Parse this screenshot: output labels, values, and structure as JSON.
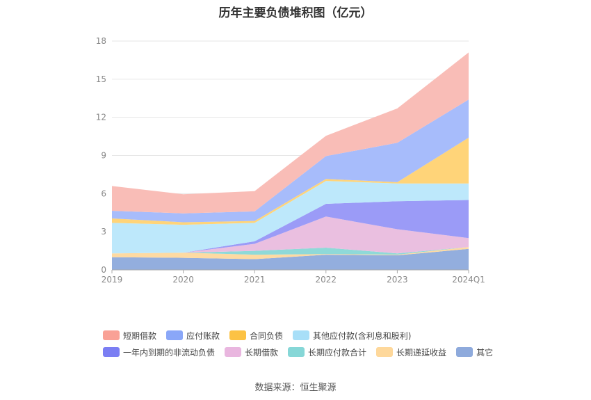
{
  "chart_data": {
    "type": "area",
    "title": "历年主要负债堆积图（亿元）",
    "categories": [
      "2019",
      "2020",
      "2021",
      "2022",
      "2023",
      "2024Q1"
    ],
    "ylim": [
      0,
      18
    ],
    "yticks": [
      0,
      3,
      6,
      9,
      12,
      15,
      18
    ],
    "stacked": true,
    "grid": true,
    "legend_position": "bottom",
    "series": [
      {
        "name": "其它",
        "color": "#93aede",
        "values": [
          1.0,
          0.95,
          0.85,
          1.2,
          1.15,
          1.65
        ]
      },
      {
        "name": "长期递延收益",
        "color": "#fedaa2",
        "values": [
          0.3,
          0.4,
          0.35,
          0.05,
          0.05,
          0.15
        ]
      },
      {
        "name": "长期应付款合计",
        "color": "#8fd9d8",
        "values": [
          0.0,
          0.0,
          0.3,
          0.5,
          0.1,
          0.0
        ]
      },
      {
        "name": "长期借款",
        "color": "#eabfe0",
        "values": [
          0.0,
          0.0,
          0.55,
          2.45,
          1.9,
          0.7
        ]
      },
      {
        "name": "一年内到期的非流动负债",
        "color": "#9b9bf7",
        "values": [
          0.0,
          0.0,
          0.2,
          1.0,
          2.2,
          3.0
        ]
      },
      {
        "name": "其他应付款(含利息和股利)",
        "color": "#bde8fb",
        "values": [
          2.4,
          2.2,
          1.45,
          1.8,
          1.4,
          1.3
        ]
      },
      {
        "name": "合同负债",
        "color": "#ffd479",
        "values": [
          0.35,
          0.2,
          0.15,
          0.15,
          0.1,
          3.6
        ]
      },
      {
        "name": "应付账款",
        "color": "#a7bcfb",
        "values": [
          0.6,
          0.7,
          0.75,
          1.8,
          3.1,
          3.0
        ]
      },
      {
        "name": "短期借款",
        "color": "#f9bdb7",
        "values": [
          1.95,
          1.5,
          1.6,
          1.6,
          2.7,
          3.7
        ]
      }
    ]
  },
  "legend": {
    "row1": [
      {
        "label": "短期借款",
        "color": "#f9a196"
      },
      {
        "label": "应付账款",
        "color": "#8aa7f8"
      },
      {
        "label": "合同负债",
        "color": "#fcc244"
      },
      {
        "label": "其他应付款(含利息和股利)",
        "color": "#a8dff8"
      }
    ],
    "row2": [
      {
        "label": "一年内到期的非流动负债",
        "color": "#7b7ef3"
      },
      {
        "label": "长期借款",
        "color": "#e9b6df"
      },
      {
        "label": "长期应付款合计",
        "color": "#86d7d7"
      },
      {
        "label": "长期递延收益",
        "color": "#fed89b"
      },
      {
        "label": "其它",
        "color": "#8eaadc"
      }
    ]
  },
  "source": "数据来源：恒生聚源"
}
